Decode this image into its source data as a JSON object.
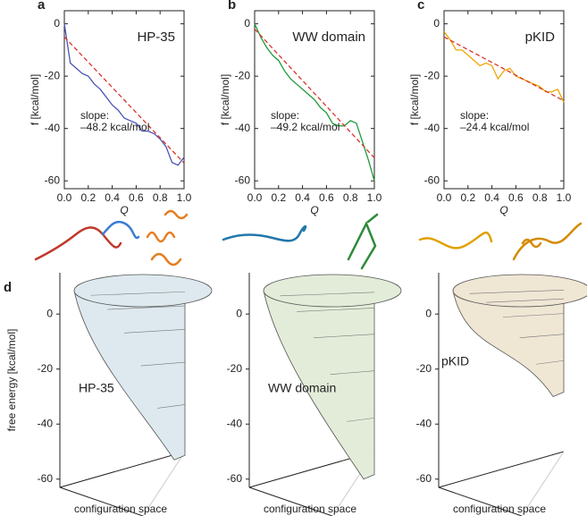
{
  "chart_data": [
    {
      "type": "line",
      "panel_label": "a",
      "title": "HP-35",
      "xlabel": "Q",
      "ylabel": "f [kcal/mol]",
      "xlim": [
        0,
        1
      ],
      "ylim": [
        -63,
        5
      ],
      "xticks": [
        {
          "value": 0,
          "label": "0.0"
        },
        0.2,
        0.4,
        0.6,
        0.8,
        {
          "value": 1,
          "label": "1.0"
        }
      ],
      "yticks": [
        0,
        -20,
        -40,
        -60
      ],
      "x": [
        0,
        0.05,
        0.1,
        0.15,
        0.2,
        0.25,
        0.3,
        0.35,
        0.4,
        0.45,
        0.5,
        0.55,
        0.6,
        0.65,
        0.7,
        0.75,
        0.8,
        0.85,
        0.9,
        0.95,
        1
      ],
      "annotations": [
        "slope:",
        "–48.2 kcal/mol"
      ],
      "series": [
        {
          "color": "#4a55b5",
          "values": [
            0,
            -15,
            -17,
            -19,
            -20,
            -23,
            -25,
            -28,
            -31,
            -33,
            -36,
            -37,
            -38,
            -41,
            -41,
            -42,
            -44,
            -47,
            -53,
            -54,
            -51
          ]
        },
        {
          "color": "#d9342b",
          "dashed": true,
          "x": [
            0,
            1
          ],
          "values": [
            -5,
            -53.2
          ]
        }
      ]
    },
    {
      "type": "line",
      "panel_label": "b",
      "title": "WW domain",
      "xlabel": "Q",
      "ylabel": "f [kcal/mol]",
      "xlim": [
        0,
        1
      ],
      "ylim": [
        -63,
        5
      ],
      "xticks": [
        {
          "value": 0,
          "label": "0.0"
        },
        0.2,
        0.4,
        0.6,
        0.8,
        {
          "value": 1,
          "label": "1.0"
        }
      ],
      "yticks": [
        0,
        -20,
        -40,
        -60
      ],
      "x": [
        0,
        0.05,
        0.1,
        0.15,
        0.2,
        0.25,
        0.3,
        0.35,
        0.4,
        0.45,
        0.5,
        0.55,
        0.6,
        0.65,
        0.7,
        0.75,
        0.8,
        0.85,
        0.9,
        0.95,
        1
      ],
      "annotations": [
        "slope:",
        "–49.2 kcal/mol"
      ],
      "series": [
        {
          "color": "#1e9a3a",
          "values": [
            0,
            -5,
            -9,
            -12,
            -14,
            -18,
            -21,
            -23,
            -25,
            -27,
            -29,
            -32,
            -34,
            -38,
            -39,
            -39,
            -37,
            -38,
            -45,
            -52,
            -60
          ]
        },
        {
          "color": "#d9342b",
          "dashed": true,
          "x": [
            0,
            1
          ],
          "values": [
            -2,
            -51.2
          ]
        }
      ]
    },
    {
      "type": "line",
      "panel_label": "c",
      "title": "pKID",
      "xlabel": "Q",
      "ylabel": "f [kcal/mol]",
      "xlim": [
        0,
        1
      ],
      "ylim": [
        -63,
        5
      ],
      "xticks": [
        {
          "value": 0,
          "label": "0.0"
        },
        0.2,
        0.4,
        0.6,
        0.8,
        {
          "value": 1,
          "label": "1.0"
        }
      ],
      "yticks": [
        0,
        -20,
        -40,
        -60
      ],
      "x": [
        0,
        0.05,
        0.1,
        0.15,
        0.2,
        0.25,
        0.3,
        0.35,
        0.4,
        0.45,
        0.5,
        0.55,
        0.6,
        0.65,
        0.7,
        0.75,
        0.8,
        0.85,
        0.9,
        0.95,
        1
      ],
      "annotations": [
        "slope:",
        "–24.4 kcal/mol"
      ],
      "series": [
        {
          "color": "#f0a500",
          "values": [
            -3,
            -6,
            -10,
            -10,
            -12,
            -14,
            -16,
            -15,
            -16,
            -21,
            -18,
            -17,
            -20,
            -21,
            -22,
            -23,
            -24,
            -26,
            -26,
            -25,
            -30
          ]
        },
        {
          "color": "#d9342b",
          "dashed": true,
          "x": [
            0,
            1
          ],
          "values": [
            -5,
            -29.4
          ]
        }
      ]
    },
    {
      "type": "funnel",
      "panel_label": "d",
      "ylabel": "free energy [kcal/mol]",
      "xlabel": "configuration space",
      "ylim": [
        -63,
        15
      ],
      "yticks": [
        0,
        -20,
        -40,
        -60
      ],
      "series": [
        {
          "name": "HP-35",
          "color": "#4a55b5",
          "fill": "#dde9ee",
          "values": [
            -53
          ]
        },
        {
          "name": "WW domain",
          "color": "#1e9a3a",
          "fill": "#e3ecd9",
          "values": [
            -60
          ]
        },
        {
          "name": "pKID",
          "color": "#f0a500",
          "fill": "#efe6d4",
          "values": [
            -30
          ]
        }
      ]
    }
  ]
}
